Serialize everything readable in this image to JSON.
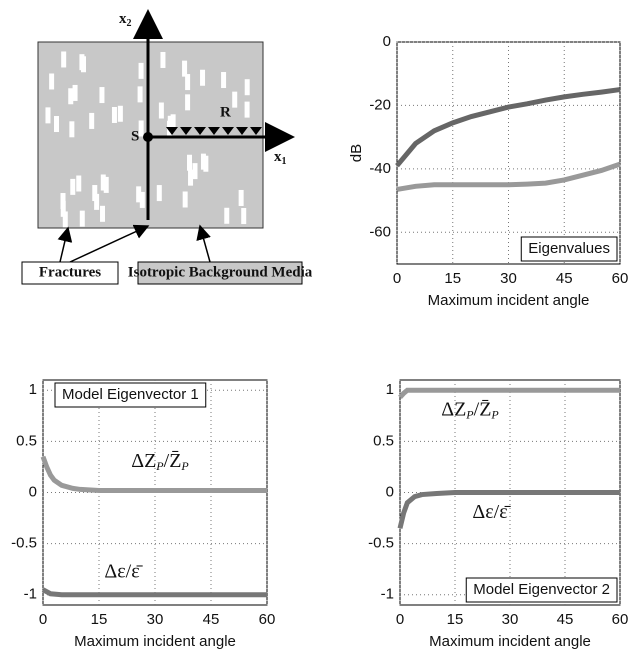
{
  "diagram": {
    "x2": {
      "base": "x",
      "sub": "2"
    },
    "x1": {
      "base": "x",
      "sub": "1"
    },
    "source": "S",
    "receivers": "R",
    "fractures": "Fractures",
    "background": "Isotropic Background Media"
  },
  "chart_data": [
    {
      "type": "line",
      "ylabel": "dB",
      "xlabel": "Maximum incident angle",
      "legend_box": "Eigenvalues",
      "xlim": [
        0,
        60
      ],
      "xticks": [
        0,
        15,
        30,
        45,
        60
      ],
      "ylim": [
        -70,
        0
      ],
      "yticks": [
        0,
        -20,
        -40,
        -60
      ],
      "grid": true,
      "series": [
        {
          "color": "#666666",
          "x": [
            0,
            5,
            10,
            15,
            20,
            25,
            30,
            35,
            40,
            45,
            50,
            55,
            60
          ],
          "values": [
            -39,
            -32,
            -28,
            -25.5,
            -23.5,
            -22,
            -20.5,
            -19.5,
            -18.3,
            -17.3,
            -16.5,
            -15.8,
            -15
          ]
        },
        {
          "color": "#999999",
          "x": [
            0,
            5,
            10,
            15,
            20,
            25,
            30,
            35,
            40,
            45,
            50,
            55,
            60
          ],
          "values": [
            -46.5,
            -45.5,
            -45,
            -45,
            -45,
            -45,
            -45,
            -44.8,
            -44.5,
            -43.5,
            -42,
            -40.5,
            -38.5
          ]
        }
      ]
    },
    {
      "type": "line",
      "xlabel": "Maximum incident angle",
      "legend_box": "Model Eigenvector 1",
      "xlim": [
        0,
        60
      ],
      "xticks": [
        0,
        15,
        30,
        45,
        60
      ],
      "ylim": [
        -1.1,
        1.1
      ],
      "yticks": [
        1,
        0.5,
        0,
        -0.5,
        -1
      ],
      "grid": true,
      "annotations": [
        [
          {
            "t": "ΔZ"
          },
          {
            "t": "P",
            "sub": true
          },
          {
            "t": "/Z̄"
          },
          {
            "t": "P",
            "sub": true
          }
        ],
        [
          {
            "t": "Δε/ε̄"
          }
        ]
      ],
      "series": [
        {
          "color": "#999999",
          "x": [
            0,
            1,
            2,
            3,
            5,
            8,
            10,
            15,
            20,
            60
          ],
          "values": [
            0.35,
            0.25,
            0.17,
            0.12,
            0.07,
            0.04,
            0.03,
            0.02,
            0.02,
            0.02
          ]
        },
        {
          "color": "#777777",
          "x": [
            0,
            2,
            5,
            60
          ],
          "values": [
            -0.95,
            -0.99,
            -1,
            -1
          ]
        }
      ]
    },
    {
      "type": "line",
      "xlabel": "Maximum incident angle",
      "legend_box": "Model Eigenvector 2",
      "xlim": [
        0,
        60
      ],
      "xticks": [
        0,
        15,
        30,
        45,
        60
      ],
      "ylim": [
        -1.1,
        1.1
      ],
      "yticks": [
        1,
        0.5,
        0,
        -0.5,
        -1
      ],
      "grid": true,
      "annotations": [
        [
          {
            "t": "ΔZ"
          },
          {
            "t": "P",
            "sub": true
          },
          {
            "t": "/Z̄"
          },
          {
            "t": "P",
            "sub": true
          }
        ],
        [
          {
            "t": "Δε/ε̄"
          }
        ]
      ],
      "series": [
        {
          "color": "#999999",
          "x": [
            0,
            1,
            2,
            60
          ],
          "values": [
            0.93,
            0.97,
            1,
            1
          ]
        },
        {
          "color": "#777777",
          "x": [
            0,
            1,
            2,
            4,
            6,
            10,
            15,
            60
          ],
          "values": [
            -0.35,
            -0.2,
            -0.1,
            -0.04,
            -0.02,
            -0.01,
            0,
            0
          ]
        }
      ]
    }
  ]
}
